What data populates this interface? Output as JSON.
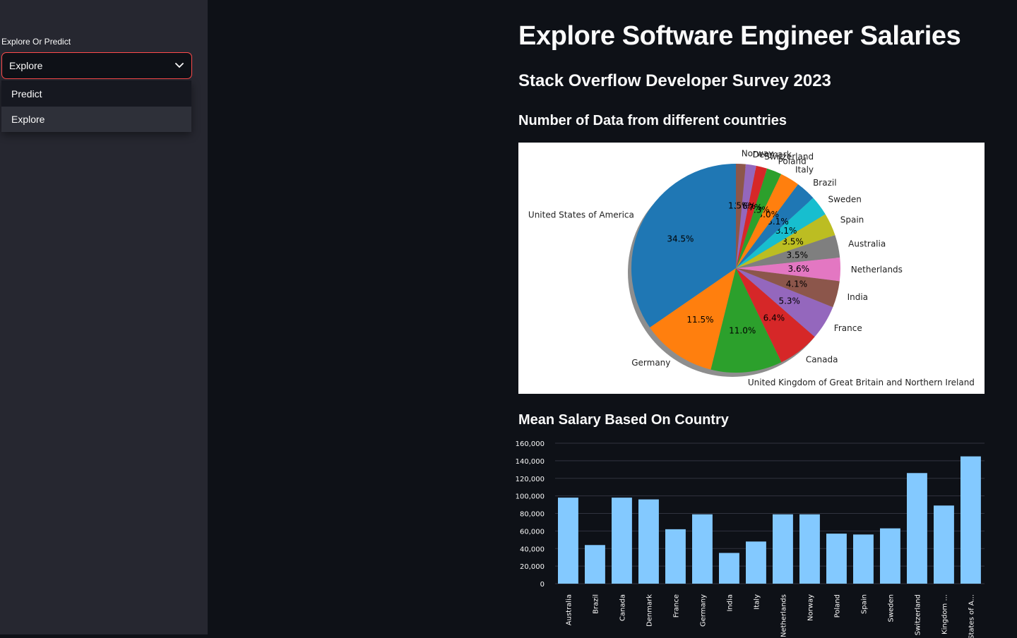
{
  "sidebar": {
    "label": "Explore Or Predict",
    "selected": "Explore",
    "options": [
      "Predict",
      "Explore"
    ]
  },
  "main": {
    "title": "Explore Software Engineer Salaries",
    "subtitle": "Stack Overflow Developer Survey 2023",
    "pie_heading": "Number of Data from different countries",
    "bar_heading": "Mean Salary Based On Country"
  },
  "colors": {
    "accent": "#ff4b4b",
    "bar": "#83c9ff",
    "pie": [
      "#1f77b4",
      "#ff7f0e",
      "#2ca02c",
      "#d62728",
      "#9467bd",
      "#8c564b",
      "#e377c2",
      "#7f7f7f",
      "#bcbd22",
      "#17becf"
    ]
  },
  "chart_data": [
    {
      "type": "pie",
      "title": "",
      "labels": [
        "United States of America",
        "Germany",
        "United Kingdom of Great Britain and Northern Ireland",
        "Canada",
        "France",
        "India",
        "Netherlands",
        "Australia",
        "Spain",
        "Sweden",
        "Brazil",
        "Italy",
        "Poland",
        "Switzerland",
        "Denmark",
        "Norway"
      ],
      "values": [
        34.5,
        11.5,
        11.0,
        6.4,
        5.3,
        4.1,
        3.6,
        3.5,
        3.5,
        3.1,
        3.1,
        3.0,
        2.3,
        1.7,
        1.6,
        1.5
      ],
      "value_labels": [
        "34.5%",
        "11.5%",
        "11.0%",
        "6.4%",
        "5.3%",
        "4.1%",
        "3.6%",
        "3.5%",
        "3.5%",
        "3.1%",
        "3.1%",
        "3.0%",
        "2.3%",
        "1.7%",
        "1.6%",
        "1.5%"
      ],
      "shadow": true
    },
    {
      "type": "bar",
      "title": "",
      "categories": [
        "Australia",
        "Brazil",
        "Canada",
        "Denmark",
        "France",
        "Germany",
        "India",
        "Italy",
        "Netherlands",
        "Norway",
        "Poland",
        "Spain",
        "Sweden",
        "Switzerland",
        "Kingdom ...",
        "States of A..."
      ],
      "values": [
        98000,
        44000,
        98000,
        96000,
        62000,
        79000,
        35000,
        48000,
        79000,
        79000,
        57000,
        56000,
        63000,
        126000,
        89000,
        145000
      ],
      "ylim": [
        0,
        160000
      ],
      "yticks": [
        0,
        20000,
        40000,
        60000,
        80000,
        100000,
        120000,
        140000,
        160000
      ],
      "ytick_labels": [
        "0",
        "20,000",
        "40,000",
        "60,000",
        "80,000",
        "100,000",
        "120,000",
        "140,000",
        "160,000"
      ],
      "xlabel": "",
      "ylabel": "",
      "grid": true
    }
  ]
}
